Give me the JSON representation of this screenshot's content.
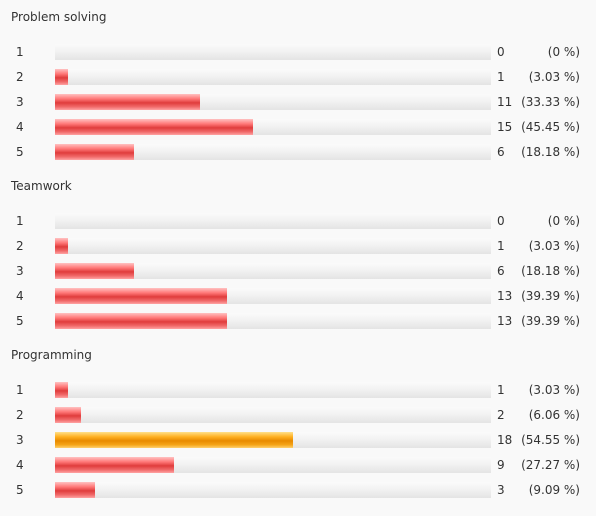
{
  "chart_data": [
    {
      "type": "bar",
      "title": "Problem solving",
      "categories": [
        "1",
        "2",
        "3",
        "4",
        "5"
      ],
      "values": [
        0,
        1,
        11,
        15,
        6
      ],
      "percent_labels": [
        "(0 %)",
        "(3.03 %)",
        "(33.33 %)",
        "(45.45 %)",
        "(18.18 %)"
      ],
      "highlight_index": -1
    },
    {
      "type": "bar",
      "title": "Teamwork",
      "categories": [
        "1",
        "2",
        "3",
        "4",
        "5"
      ],
      "values": [
        0,
        1,
        6,
        13,
        13
      ],
      "percent_labels": [
        "(0 %)",
        "(3.03 %)",
        "(18.18 %)",
        "(39.39 %)",
        "(39.39 %)"
      ],
      "highlight_index": -1
    },
    {
      "type": "bar",
      "title": "Programming",
      "categories": [
        "1",
        "2",
        "3",
        "4",
        "5"
      ],
      "values": [
        1,
        2,
        18,
        9,
        3
      ],
      "percent_labels": [
        "(3.03 %)",
        "(6.06 %)",
        "(54.55 %)",
        "(27.27 %)",
        "(9.09 %)"
      ],
      "highlight_index": 2
    }
  ],
  "colors": {
    "bar": "#e84a4a",
    "highlight_bar": "#f39200",
    "track": "#ececec"
  }
}
